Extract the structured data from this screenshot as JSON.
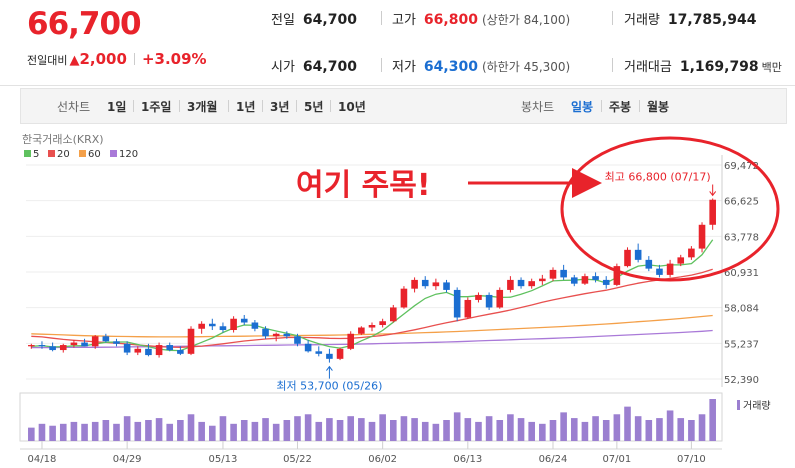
{
  "header": {
    "price": "66,700",
    "change_label": "전일대비",
    "change_arrow": "▲",
    "change_value": "2,000",
    "change_pct": "+3.09%",
    "fields": {
      "prev_close": {
        "label": "전일",
        "value": "64,700"
      },
      "high": {
        "label": "고가",
        "value": "66,800",
        "sub": "(상한가 84,100)"
      },
      "volume": {
        "label": "거래량",
        "value": "17,785,944"
      },
      "open": {
        "label": "시가",
        "value": "64,700"
      },
      "low": {
        "label": "저가",
        "value": "64,300",
        "sub": "(하한가 45,300)"
      },
      "amount": {
        "label": "거래대금",
        "value": "1,169,798",
        "unit": "백만"
      }
    }
  },
  "tabs": {
    "line_group": "선차트",
    "line_periods": [
      "1일",
      "1주일",
      "3개월",
      "1년",
      "3년",
      "5년",
      "10년"
    ],
    "candle_group": "봉차트",
    "candle_periods": [
      "일봉",
      "주봉",
      "월봉"
    ],
    "active": "일봉"
  },
  "colors": {
    "up": "#e8232b",
    "down": "#1b6ed1",
    "ma5": "#5fc15f",
    "ma20": "#e8504f",
    "ma60": "#f4a049",
    "ma120": "#a979d8",
    "volume": "#9b7fd0"
  },
  "chart_data": {
    "type": "candlestick",
    "source": "한국거래소(KRX)",
    "legend": [
      {
        "name": "5",
        "color": "#5fc15f"
      },
      {
        "name": "20",
        "color": "#e8504f"
      },
      {
        "name": "60",
        "color": "#f4a049"
      },
      {
        "name": "120",
        "color": "#a979d8"
      }
    ],
    "y_ticks": [
      52390,
      55237,
      58084,
      60931,
      63778,
      66625,
      69472
    ],
    "y_tick_labels": [
      "52,390",
      "55,237",
      "58,084",
      "60,931",
      "63,778",
      "66,625",
      "69,472"
    ],
    "ylim": [
      52390,
      69472
    ],
    "x_tick_labels": [
      "04/18",
      "04/29",
      "05/13",
      "05/22",
      "06/02",
      "06/13",
      "06/24",
      "07/01",
      "07/10"
    ],
    "x_tick_index": [
      1,
      9,
      18,
      25,
      33,
      41,
      49,
      55,
      62
    ],
    "candles": [
      [
        55000,
        55200,
        54800,
        55100
      ],
      [
        55100,
        55400,
        54800,
        55000
      ],
      [
        55000,
        55300,
        54600,
        54700
      ],
      [
        54700,
        55200,
        54500,
        55100
      ],
      [
        55100,
        55500,
        54900,
        55300
      ],
      [
        55300,
        55600,
        55000,
        55000
      ],
      [
        55000,
        55900,
        54800,
        55800
      ],
      [
        55800,
        56000,
        55300,
        55400
      ],
      [
        55400,
        55600,
        55000,
        55200
      ],
      [
        55200,
        55400,
        54300,
        54500
      ],
      [
        54500,
        55000,
        54300,
        54800
      ],
      [
        54800,
        55200,
        54200,
        54300
      ],
      [
        54300,
        55300,
        54100,
        55100
      ],
      [
        55100,
        55300,
        54600,
        54700
      ],
      [
        54700,
        55000,
        54300,
        54400
      ],
      [
        54400,
        56600,
        54300,
        56400
      ],
      [
        56400,
        57000,
        56000,
        56800
      ],
      [
        56800,
        57200,
        56300,
        56600
      ],
      [
        56600,
        56900,
        56100,
        56300
      ],
      [
        56300,
        57400,
        56100,
        57200
      ],
      [
        57200,
        57500,
        56700,
        56900
      ],
      [
        56900,
        57100,
        56200,
        56400
      ],
      [
        56400,
        56600,
        55600,
        55800
      ],
      [
        55800,
        56100,
        55400,
        56000
      ],
      [
        56000,
        56200,
        55600,
        55800
      ],
      [
        55800,
        56000,
        55000,
        55200
      ],
      [
        55200,
        55500,
        54500,
        54600
      ],
      [
        54600,
        55000,
        54200,
        54400
      ],
      [
        54400,
        54800,
        53700,
        54000
      ],
      [
        54000,
        54900,
        53900,
        54800
      ],
      [
        54800,
        56200,
        54700,
        56000
      ],
      [
        56000,
        56600,
        55900,
        56500
      ],
      [
        56500,
        56900,
        56200,
        56700
      ],
      [
        56700,
        57200,
        56500,
        57000
      ],
      [
        57000,
        58300,
        56900,
        58100
      ],
      [
        58100,
        59800,
        58000,
        59600
      ],
      [
        59600,
        60500,
        59300,
        60300
      ],
      [
        60300,
        60600,
        59600,
        59800
      ],
      [
        59800,
        60400,
        59500,
        60100
      ],
      [
        60100,
        60300,
        59300,
        59500
      ],
      [
        59500,
        59700,
        57000,
        57300
      ],
      [
        57300,
        58900,
        57200,
        58700
      ],
      [
        58700,
        59300,
        58500,
        59100
      ],
      [
        59100,
        59300,
        57900,
        58100
      ],
      [
        58100,
        59700,
        58000,
        59500
      ],
      [
        59500,
        60600,
        59300,
        60300
      ],
      [
        60300,
        60500,
        59600,
        59800
      ],
      [
        59800,
        60400,
        59600,
        60200
      ],
      [
        60200,
        60700,
        59900,
        60400
      ],
      [
        60400,
        61300,
        60200,
        61100
      ],
      [
        61100,
        61500,
        60300,
        60500
      ],
      [
        60500,
        60700,
        59800,
        60000
      ],
      [
        60000,
        60800,
        59900,
        60600
      ],
      [
        60600,
        60900,
        60100,
        60300
      ],
      [
        60300,
        60600,
        59600,
        59900
      ],
      [
        59900,
        61600,
        59800,
        61400
      ],
      [
        61400,
        62900,
        61300,
        62700
      ],
      [
        62700,
        63200,
        61700,
        61900
      ],
      [
        61900,
        62200,
        61000,
        61200
      ],
      [
        61200,
        61500,
        60500,
        60700
      ],
      [
        60700,
        61900,
        60500,
        61600
      ],
      [
        61600,
        62300,
        61400,
        62100
      ],
      [
        62100,
        63000,
        61900,
        62800
      ],
      [
        62800,
        64900,
        62500,
        64700
      ],
      [
        64700,
        66800,
        64300,
        66700
      ]
    ],
    "ma5": [
      55000,
      55050,
      54950,
      54970,
      55040,
      55040,
      55180,
      55320,
      55340,
      55340,
      55140,
      54960,
      54780,
      54680,
      54660,
      54980,
      55320,
      55660,
      56100,
      56460,
      56700,
      56680,
      56420,
      56220,
      56040,
      55840,
      55480,
      55200,
      54980,
      54860,
      55040,
      55440,
      55800,
      56260,
      56920,
      57580,
      58240,
      58820,
      59160,
      59300,
      58960,
      58960,
      59040,
      59000,
      58900,
      58920,
      59160,
      59440,
      59820,
      60220,
      60260,
      60280,
      60360,
      60300,
      60060,
      60500,
      61000,
      61400,
      61500,
      61400,
      61500,
      61500,
      61600,
      62300,
      63500
    ],
    "ma20": [
      55800,
      55750,
      55650,
      55550,
      55480,
      55420,
      55360,
      55300,
      55250,
      55180,
      55100,
      55040,
      54980,
      54940,
      54920,
      54960,
      55020,
      55100,
      55200,
      55310,
      55420,
      55500,
      55580,
      55640,
      55700,
      55720,
      55700,
      55680,
      55640,
      55620,
      55640,
      55700,
      55780,
      55860,
      55990,
      56150,
      56320,
      56500,
      56700,
      56880,
      57040,
      57220,
      57400,
      57560,
      57720,
      57900,
      58100,
      58300,
      58510,
      58700,
      58880,
      59040,
      59200,
      59340,
      59480,
      59660,
      59860,
      60040,
      60180,
      60300,
      60420,
      60540,
      60680,
      60880,
      61150
    ],
    "ma60": [
      56000,
      55970,
      55940,
      55910,
      55880,
      55850,
      55830,
      55810,
      55790,
      55780,
      55770,
      55760,
      55750,
      55750,
      55750,
      55760,
      55770,
      55780,
      55790,
      55800,
      55810,
      55820,
      55830,
      55840,
      55850,
      55860,
      55870,
      55880,
      55890,
      55900,
      55920,
      55940,
      55960,
      55980,
      56000,
      56030,
      56060,
      56090,
      56120,
      56150,
      56180,
      56220,
      56260,
      56300,
      56340,
      56380,
      56420,
      56460,
      56500,
      56540,
      56580,
      56630,
      56680,
      56730,
      56780,
      56840,
      56900,
      56960,
      57020,
      57080,
      57150,
      57220,
      57300,
      57380,
      57460
    ],
    "ma120": [
      54900,
      54900,
      54900,
      54910,
      54910,
      54920,
      54920,
      54930,
      54940,
      54950,
      54960,
      54970,
      54980,
      54990,
      55000,
      55010,
      55020,
      55030,
      55040,
      55050,
      55060,
      55070,
      55080,
      55090,
      55100,
      55110,
      55120,
      55130,
      55140,
      55150,
      55160,
      55180,
      55200,
      55220,
      55240,
      55260,
      55280,
      55300,
      55320,
      55340,
      55370,
      55400,
      55430,
      55460,
      55490,
      55520,
      55550,
      55580,
      55610,
      55640,
      55670,
      55700,
      55740,
      55780,
      55820,
      55860,
      55900,
      55940,
      55980,
      56020,
      56060,
      56100,
      56150,
      56200,
      56260
    ],
    "volume": [
      7,
      9,
      8,
      9,
      10,
      9,
      10,
      11,
      9,
      13,
      10,
      11,
      12,
      9,
      11,
      14,
      10,
      8,
      13,
      9,
      11,
      10,
      12,
      9,
      11,
      13,
      14,
      10,
      12,
      11,
      13,
      12,
      10,
      14,
      11,
      13,
      12,
      10,
      9,
      11,
      15,
      12,
      10,
      13,
      11,
      14,
      12,
      10,
      9,
      11,
      15,
      12,
      10,
      13,
      11,
      14,
      18,
      13,
      11,
      12,
      16,
      12,
      11,
      14,
      22
    ],
    "volume_label": "거래량",
    "annotations": {
      "max": {
        "text": "최고 66,800 (07/17)",
        "index": 64,
        "price": 66800
      },
      "min": {
        "text": "최저 53,700 (05/26)",
        "index": 28,
        "price": 53700
      },
      "callout": "여기 주목!"
    }
  }
}
